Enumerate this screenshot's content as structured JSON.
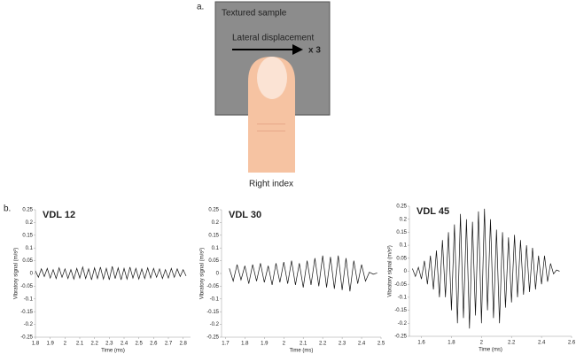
{
  "labels": {
    "a": "a.",
    "b": "b."
  },
  "diagram": {
    "sample_label": "Textured sample",
    "motion_label": "Lateral displacement",
    "repeat_label": "x 3",
    "finger_label": "Right index"
  },
  "chart_data": [
    {
      "type": "line",
      "title": "VDL 12",
      "x_label": "Time (ms)",
      "y_label": "Vibratory signal (m/s²)",
      "color": "#111111",
      "xlim": [
        1.8,
        2.85
      ],
      "xticks": [
        1.8,
        1.9,
        2,
        2.1,
        2.2,
        2.3,
        2.4,
        2.5,
        2.6,
        2.7,
        2.8
      ],
      "ylim": [
        -0.25,
        0.25
      ],
      "yticks": [
        -0.25,
        -0.2,
        -0.15,
        -0.1,
        -0.05,
        0,
        0.05,
        0.1,
        0.15,
        0.2,
        0.25
      ],
      "x": [
        1.8,
        1.82,
        1.84,
        1.86,
        1.88,
        1.9,
        1.92,
        1.94,
        1.96,
        1.98,
        2,
        2.02,
        2.04,
        2.06,
        2.08,
        2.1,
        2.12,
        2.14,
        2.16,
        2.18,
        2.2,
        2.22,
        2.24,
        2.26,
        2.28,
        2.3,
        2.32,
        2.34,
        2.36,
        2.38,
        2.4,
        2.42,
        2.44,
        2.46,
        2.48,
        2.5,
        2.52,
        2.54,
        2.56,
        2.58,
        2.6,
        2.62,
        2.64,
        2.66,
        2.68,
        2.7,
        2.72,
        2.74,
        2.76,
        2.78,
        2.8,
        2.82
      ],
      "values": [
        0.01,
        -0.015,
        0.018,
        -0.012,
        0.02,
        -0.018,
        0.015,
        -0.02,
        0.022,
        -0.015,
        0.018,
        -0.02,
        0.015,
        -0.022,
        0.02,
        -0.018,
        0.025,
        -0.02,
        0.018,
        -0.025,
        0.022,
        -0.02,
        0.025,
        -0.022,
        0.02,
        -0.025,
        0.028,
        -0.02,
        0.022,
        -0.025,
        0.02,
        -0.022,
        0.025,
        -0.018,
        0.02,
        -0.022,
        0.018,
        -0.02,
        0.022,
        -0.018,
        0.02,
        -0.015,
        0.018,
        -0.02,
        0.015,
        -0.018,
        0.02,
        -0.015,
        0.018,
        -0.012,
        0.015,
        -0.01
      ]
    },
    {
      "type": "line",
      "title": "VDL 30",
      "x_label": "Time (ms)",
      "y_label": "Vibratory signal (m/s²)",
      "color": "#111111",
      "xlim": [
        1.68,
        2.5
      ],
      "xticks": [
        1.7,
        1.8,
        1.9,
        2,
        2.1,
        2.2,
        2.3,
        2.4,
        2.5
      ],
      "ylim": [
        -0.25,
        0.25
      ],
      "yticks": [
        -0.25,
        -0.2,
        -0.15,
        -0.1,
        -0.05,
        0,
        0.05,
        0.1,
        0.15,
        0.2,
        0.25
      ],
      "x": [
        1.72,
        1.74,
        1.76,
        1.78,
        1.8,
        1.82,
        1.84,
        1.86,
        1.88,
        1.9,
        1.92,
        1.94,
        1.96,
        1.98,
        2,
        2.02,
        2.04,
        2.06,
        2.08,
        2.1,
        2.12,
        2.14,
        2.16,
        2.18,
        2.2,
        2.22,
        2.24,
        2.26,
        2.28,
        2.3,
        2.32,
        2.34,
        2.36,
        2.38,
        2.4,
        2.42,
        2.44,
        2.46,
        2.48
      ],
      "values": [
        0.02,
        -0.03,
        0.035,
        -0.025,
        0.03,
        -0.04,
        0.035,
        -0.03,
        0.04,
        -0.035,
        0.03,
        -0.045,
        0.04,
        -0.035,
        0.045,
        -0.04,
        0.05,
        -0.045,
        0.04,
        -0.055,
        0.05,
        -0.045,
        0.06,
        -0.05,
        0.07,
        -0.055,
        0.065,
        -0.06,
        0.07,
        -0.065,
        0.06,
        -0.07,
        0.05,
        -0.04,
        0.035,
        -0.03,
        0.005,
        -0.003,
        0.002
      ]
    },
    {
      "type": "line",
      "title": "VDL 45",
      "x_label": "Time (ms)",
      "y_label": "Vibratory signal (m/s²)",
      "color": "#111111",
      "xlim": [
        1.52,
        2.6
      ],
      "xticks": [
        1.6,
        1.8,
        2,
        2.2,
        2.4,
        2.6
      ],
      "ylim": [
        -0.25,
        0.25
      ],
      "yticks": [
        -0.25,
        -0.2,
        -0.15,
        -0.1,
        -0.05,
        0,
        0.05,
        0.1,
        0.15,
        0.2,
        0.25
      ],
      "x": [
        1.54,
        1.56,
        1.58,
        1.6,
        1.62,
        1.64,
        1.66,
        1.68,
        1.7,
        1.72,
        1.74,
        1.76,
        1.78,
        1.8,
        1.82,
        1.84,
        1.86,
        1.88,
        1.9,
        1.92,
        1.94,
        1.96,
        1.98,
        2,
        2.02,
        2.04,
        2.06,
        2.08,
        2.1,
        2.12,
        2.14,
        2.16,
        2.18,
        2.2,
        2.22,
        2.24,
        2.26,
        2.28,
        2.3,
        2.32,
        2.34,
        2.36,
        2.38,
        2.4,
        2.42,
        2.44,
        2.46,
        2.48,
        2.5,
        2.52
      ],
      "values": [
        0.01,
        -0.02,
        0.015,
        -0.03,
        0.04,
        -0.05,
        0.06,
        -0.07,
        0.08,
        -0.1,
        0.12,
        -0.1,
        0.15,
        -0.15,
        0.18,
        -0.2,
        0.22,
        -0.18,
        0.2,
        -0.22,
        0.19,
        -0.17,
        0.23,
        -0.2,
        0.24,
        -0.15,
        0.2,
        -0.18,
        0.16,
        -0.2,
        0.15,
        -0.14,
        0.13,
        -0.12,
        0.14,
        -0.1,
        0.12,
        -0.09,
        0.1,
        -0.08,
        0.09,
        -0.07,
        0.06,
        -0.05,
        0.06,
        -0.04,
        0.03,
        -0.01,
        0.005,
        0
      ]
    }
  ]
}
